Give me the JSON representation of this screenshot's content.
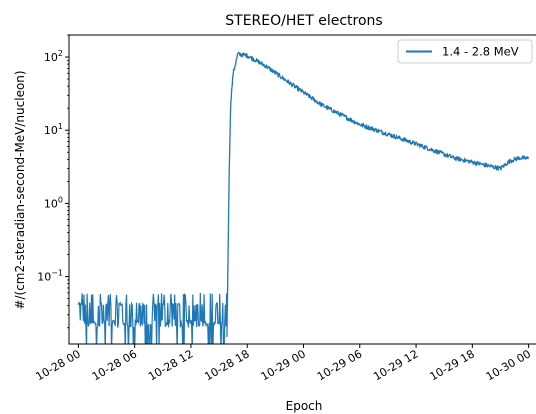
{
  "chart_data": {
    "type": "line",
    "title": "STEREO/HET electrons",
    "xlabel": "Epoch",
    "ylabel": "#/(cm2-steradian-second-MeV/nucleon)",
    "y_scale": "log",
    "ylim": [
      0.012,
      200
    ],
    "xlim": [
      "2023-10-27T23:00",
      "2023-10-30T01:00"
    ],
    "x_ticks": [
      "10-28 00",
      "10-28 06",
      "10-28 12",
      "10-28 18",
      "10-29 00",
      "10-29 06",
      "10-29 12",
      "10-29 18",
      "10-30 00"
    ],
    "y_ticks": [
      {
        "value": 0.1,
        "base": "10",
        "exp": "−1"
      },
      {
        "value": 1,
        "base": "10",
        "exp": "0"
      },
      {
        "value": 10,
        "base": "10",
        "exp": "1"
      },
      {
        "value": 100,
        "base": "10",
        "exp": "2"
      }
    ],
    "grid": false,
    "legend_position": "top-right",
    "series": [
      {
        "name": "1.4 - 2.8 MeV",
        "color": "#1f77b4",
        "background_level_range": [
          0.02,
          0.06
        ],
        "points": [
          {
            "x": "2023-10-28T15:50",
            "y": 0.015
          },
          {
            "x": "2023-10-28T15:55",
            "y": 0.08
          },
          {
            "x": "2023-10-28T16:05",
            "y": 3
          },
          {
            "x": "2023-10-28T16:15",
            "y": 25
          },
          {
            "x": "2023-10-28T16:30",
            "y": 60
          },
          {
            "x": "2023-10-28T17:00",
            "y": 110
          },
          {
            "x": "2023-10-28T18:00",
            "y": 105
          },
          {
            "x": "2023-10-28T20:00",
            "y": 75
          },
          {
            "x": "2023-10-28T23:00",
            "y": 40
          },
          {
            "x": "2023-10-29T02:00",
            "y": 22
          },
          {
            "x": "2023-10-29T06:00",
            "y": 12
          },
          {
            "x": "2023-10-29T10:00",
            "y": 8
          },
          {
            "x": "2023-10-29T12:00",
            "y": 6.5
          },
          {
            "x": "2023-10-29T16:00",
            "y": 4.2
          },
          {
            "x": "2023-10-29T20:00",
            "y": 3.2
          },
          {
            "x": "2023-10-29T21:00",
            "y": 3.0
          },
          {
            "x": "2023-10-29T22:00",
            "y": 3.8
          },
          {
            "x": "2023-10-29T23:00",
            "y": 4.2
          },
          {
            "x": "2023-10-30T00:00",
            "y": 4.1
          }
        ]
      }
    ]
  }
}
